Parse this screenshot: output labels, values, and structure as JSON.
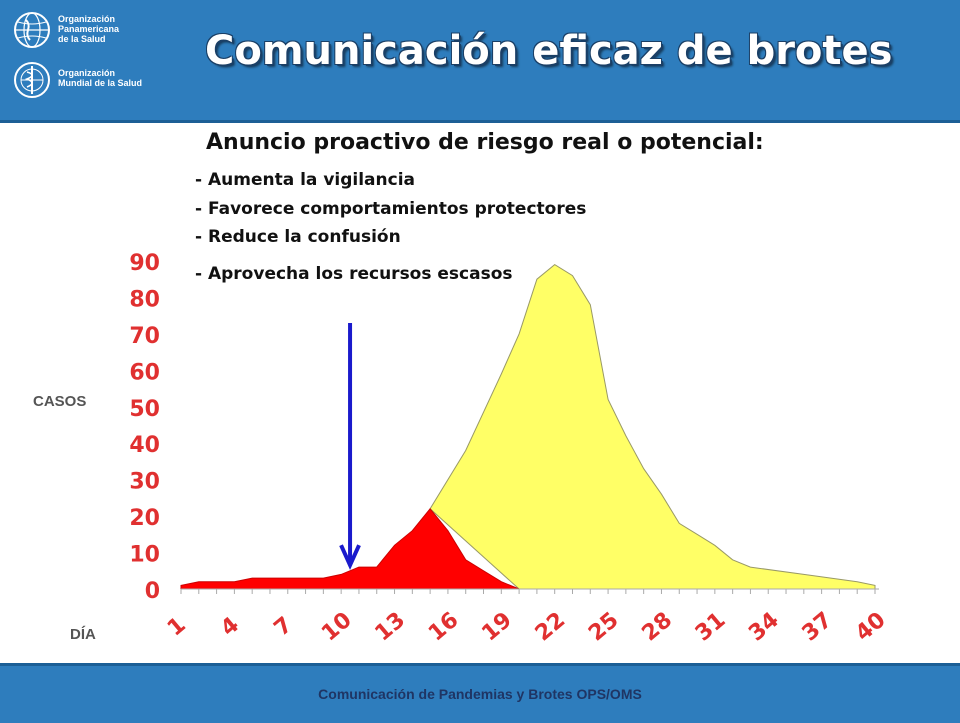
{
  "header": {
    "org1_lines": [
      "Organización",
      "Panamericana",
      "de la Salud"
    ],
    "org2_lines": [
      "Organización",
      "Mundial de la Salud"
    ],
    "title": "Comunicación eficaz de brotes"
  },
  "content": {
    "subtitle": "Anuncio proactivo de riesgo real o potencial:",
    "bullets": [
      "-  Aumenta la vigilancia",
      "-  Favorece comportamientos protectores",
      "-  Reduce la confusión",
      "-  Aprovecha los recursos escasos"
    ]
  },
  "footer": {
    "text": "Comunicación  de Pandemias  y Brotes OPS/OMS"
  },
  "colors": {
    "header_bg": "#2e7dbd",
    "red_area": "#ff0000",
    "yellow_area": "#ffff66",
    "arrow": "#1a1acc",
    "tick_text": "#e03030"
  },
  "chart_data": {
    "type": "area",
    "ylabel": "CASOS",
    "xlabel": "DÍA",
    "ylim": [
      0,
      90
    ],
    "yticks": [
      "0",
      "10",
      "20",
      "30",
      "40",
      "50",
      "60",
      "70",
      "80",
      "90"
    ],
    "xlim": [
      1,
      40
    ],
    "xticks": [
      "1",
      "4",
      "7",
      "10",
      "13",
      "16",
      "19",
      "22",
      "25",
      "28",
      "31",
      "34",
      "37",
      "40"
    ],
    "series": [
      {
        "color": "#ff0000",
        "points": [
          [
            1,
            1
          ],
          [
            2,
            2
          ],
          [
            3,
            2
          ],
          [
            4,
            2
          ],
          [
            5,
            3
          ],
          [
            6,
            3
          ],
          [
            7,
            3
          ],
          [
            8,
            3
          ],
          [
            9,
            3
          ],
          [
            10,
            4
          ],
          [
            11,
            6
          ],
          [
            12,
            6
          ],
          [
            13,
            12
          ],
          [
            14,
            16
          ],
          [
            15,
            22
          ],
          [
            16,
            16
          ],
          [
            17,
            8
          ],
          [
            18,
            5
          ],
          [
            19,
            2
          ],
          [
            20,
            0
          ]
        ]
      },
      {
        "color": "#ffff66",
        "points": [
          [
            15,
            22
          ],
          [
            17,
            38
          ],
          [
            19,
            59
          ],
          [
            20,
            70
          ],
          [
            21,
            85
          ],
          [
            22,
            89
          ],
          [
            23,
            86
          ],
          [
            24,
            78
          ],
          [
            25,
            52
          ],
          [
            26,
            42
          ],
          [
            27,
            33
          ],
          [
            28,
            26
          ],
          [
            29,
            18
          ],
          [
            30,
            15
          ],
          [
            31,
            12
          ],
          [
            32,
            8
          ],
          [
            33,
            6
          ],
          [
            36,
            4
          ],
          [
            39,
            2
          ],
          [
            40,
            1
          ],
          [
            40,
            0
          ],
          [
            20,
            0
          ]
        ]
      }
    ],
    "annotation": {
      "type": "arrow",
      "x": 10.5,
      "y_from": 73,
      "y_to": 6
    }
  }
}
